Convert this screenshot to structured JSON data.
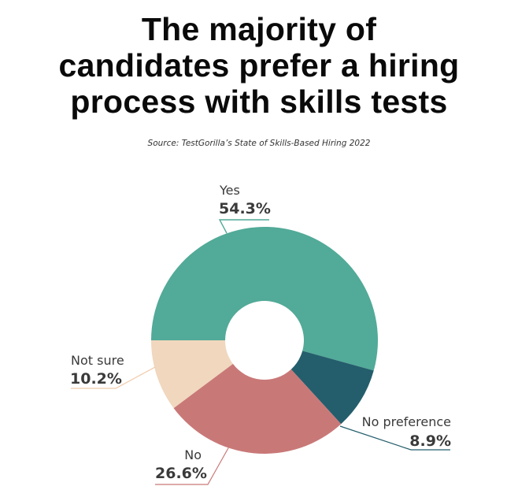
{
  "title": {
    "lines": [
      "The majority of",
      "candidates prefer a hiring",
      "process with skills tests"
    ]
  },
  "source": "Source: TestGorilla’s State of Skills-Based Hiring 2022",
  "chart_data": {
    "type": "pie",
    "variant": "donut",
    "title": "The majority of candidates prefer a hiring process with skills tests",
    "subtitle": "Source: TestGorilla’s State of Skills-Based Hiring 2022",
    "categories": [
      "Yes",
      "No preference",
      "No",
      "Not sure"
    ],
    "values": [
      54.3,
      8.9,
      26.6,
      10.2
    ],
    "unit": "%",
    "colors": [
      "#52AA98",
      "#245E6C",
      "#C97878",
      "#F0D7BE"
    ],
    "start_angle_deg_clockwise_from_top": 270,
    "direction": "clockwise",
    "legend": "none (direct labels with leader lines)"
  },
  "labels": [
    {
      "name": "Yes",
      "value": "54.3%"
    },
    {
      "name": "No preference",
      "value": "8.9%"
    },
    {
      "name": "No",
      "value": "26.6%"
    },
    {
      "name": "Not sure",
      "value": "10.2%"
    }
  ]
}
